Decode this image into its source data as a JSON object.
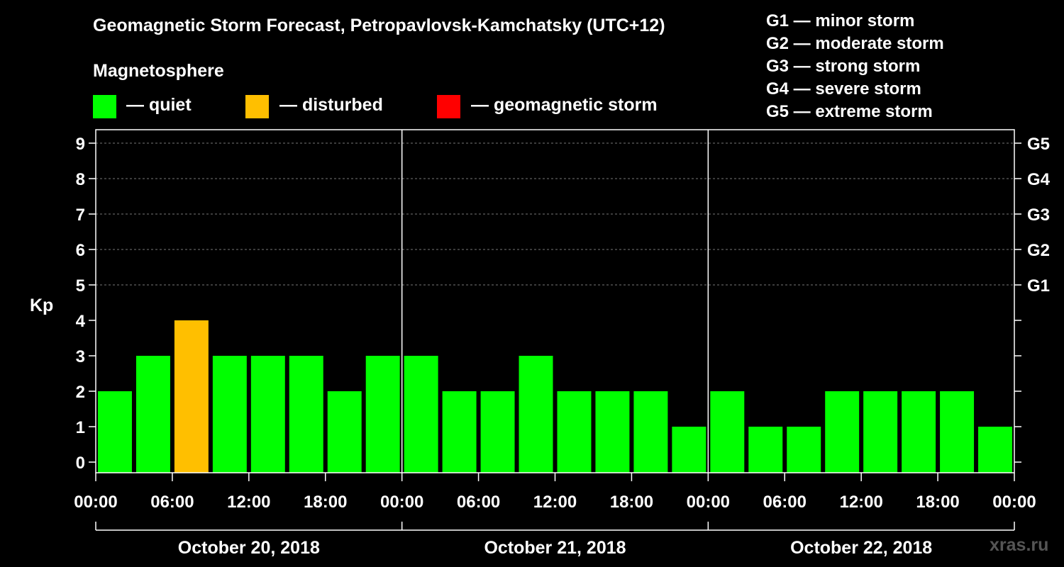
{
  "title": "Geomagnetic Storm Forecast, Petropavlovsk-Kamchatsky (UTC+12)",
  "legend": {
    "title": "Magnetosphere",
    "items": [
      {
        "label": "— quiet",
        "color": "#00ff00"
      },
      {
        "label": "— disturbed",
        "color": "#ffbf00"
      },
      {
        "label": "— geomagnetic storm",
        "color": "#ff0000"
      }
    ]
  },
  "storm_scale": [
    "G1 — minor storm",
    "G2 — moderate storm",
    "G3 — strong storm",
    "G4 — severe storm",
    "G5 — extreme storm"
  ],
  "watermark": "xras.ru",
  "chart_data": {
    "type": "bar",
    "ylabel": "Kp",
    "ylim": [
      0,
      9
    ],
    "yticks": [
      "0",
      "1",
      "2",
      "3",
      "4",
      "5",
      "6",
      "7",
      "8",
      "9"
    ],
    "right_ticks": [
      {
        "value": 5,
        "label": "G1"
      },
      {
        "value": 6,
        "label": "G2"
      },
      {
        "value": 7,
        "label": "G3"
      },
      {
        "value": 8,
        "label": "G4"
      },
      {
        "value": 9,
        "label": "G5"
      }
    ],
    "xticks": [
      "00:00",
      "06:00",
      "12:00",
      "18:00",
      "00:00",
      "06:00",
      "12:00",
      "18:00",
      "00:00",
      "06:00",
      "12:00",
      "18:00",
      "00:00"
    ],
    "days": [
      "October 20, 2018",
      "October 21, 2018",
      "October 22, 2018"
    ],
    "grid": true,
    "values": [
      2,
      3,
      4,
      3,
      3,
      3,
      2,
      3,
      3,
      2,
      2,
      3,
      2,
      2,
      2,
      1,
      2,
      1,
      1,
      2,
      2,
      2,
      2,
      1
    ],
    "colors": {
      "quiet": "#00ff00",
      "disturbed": "#ffbf00",
      "storm": "#ff0000"
    }
  }
}
